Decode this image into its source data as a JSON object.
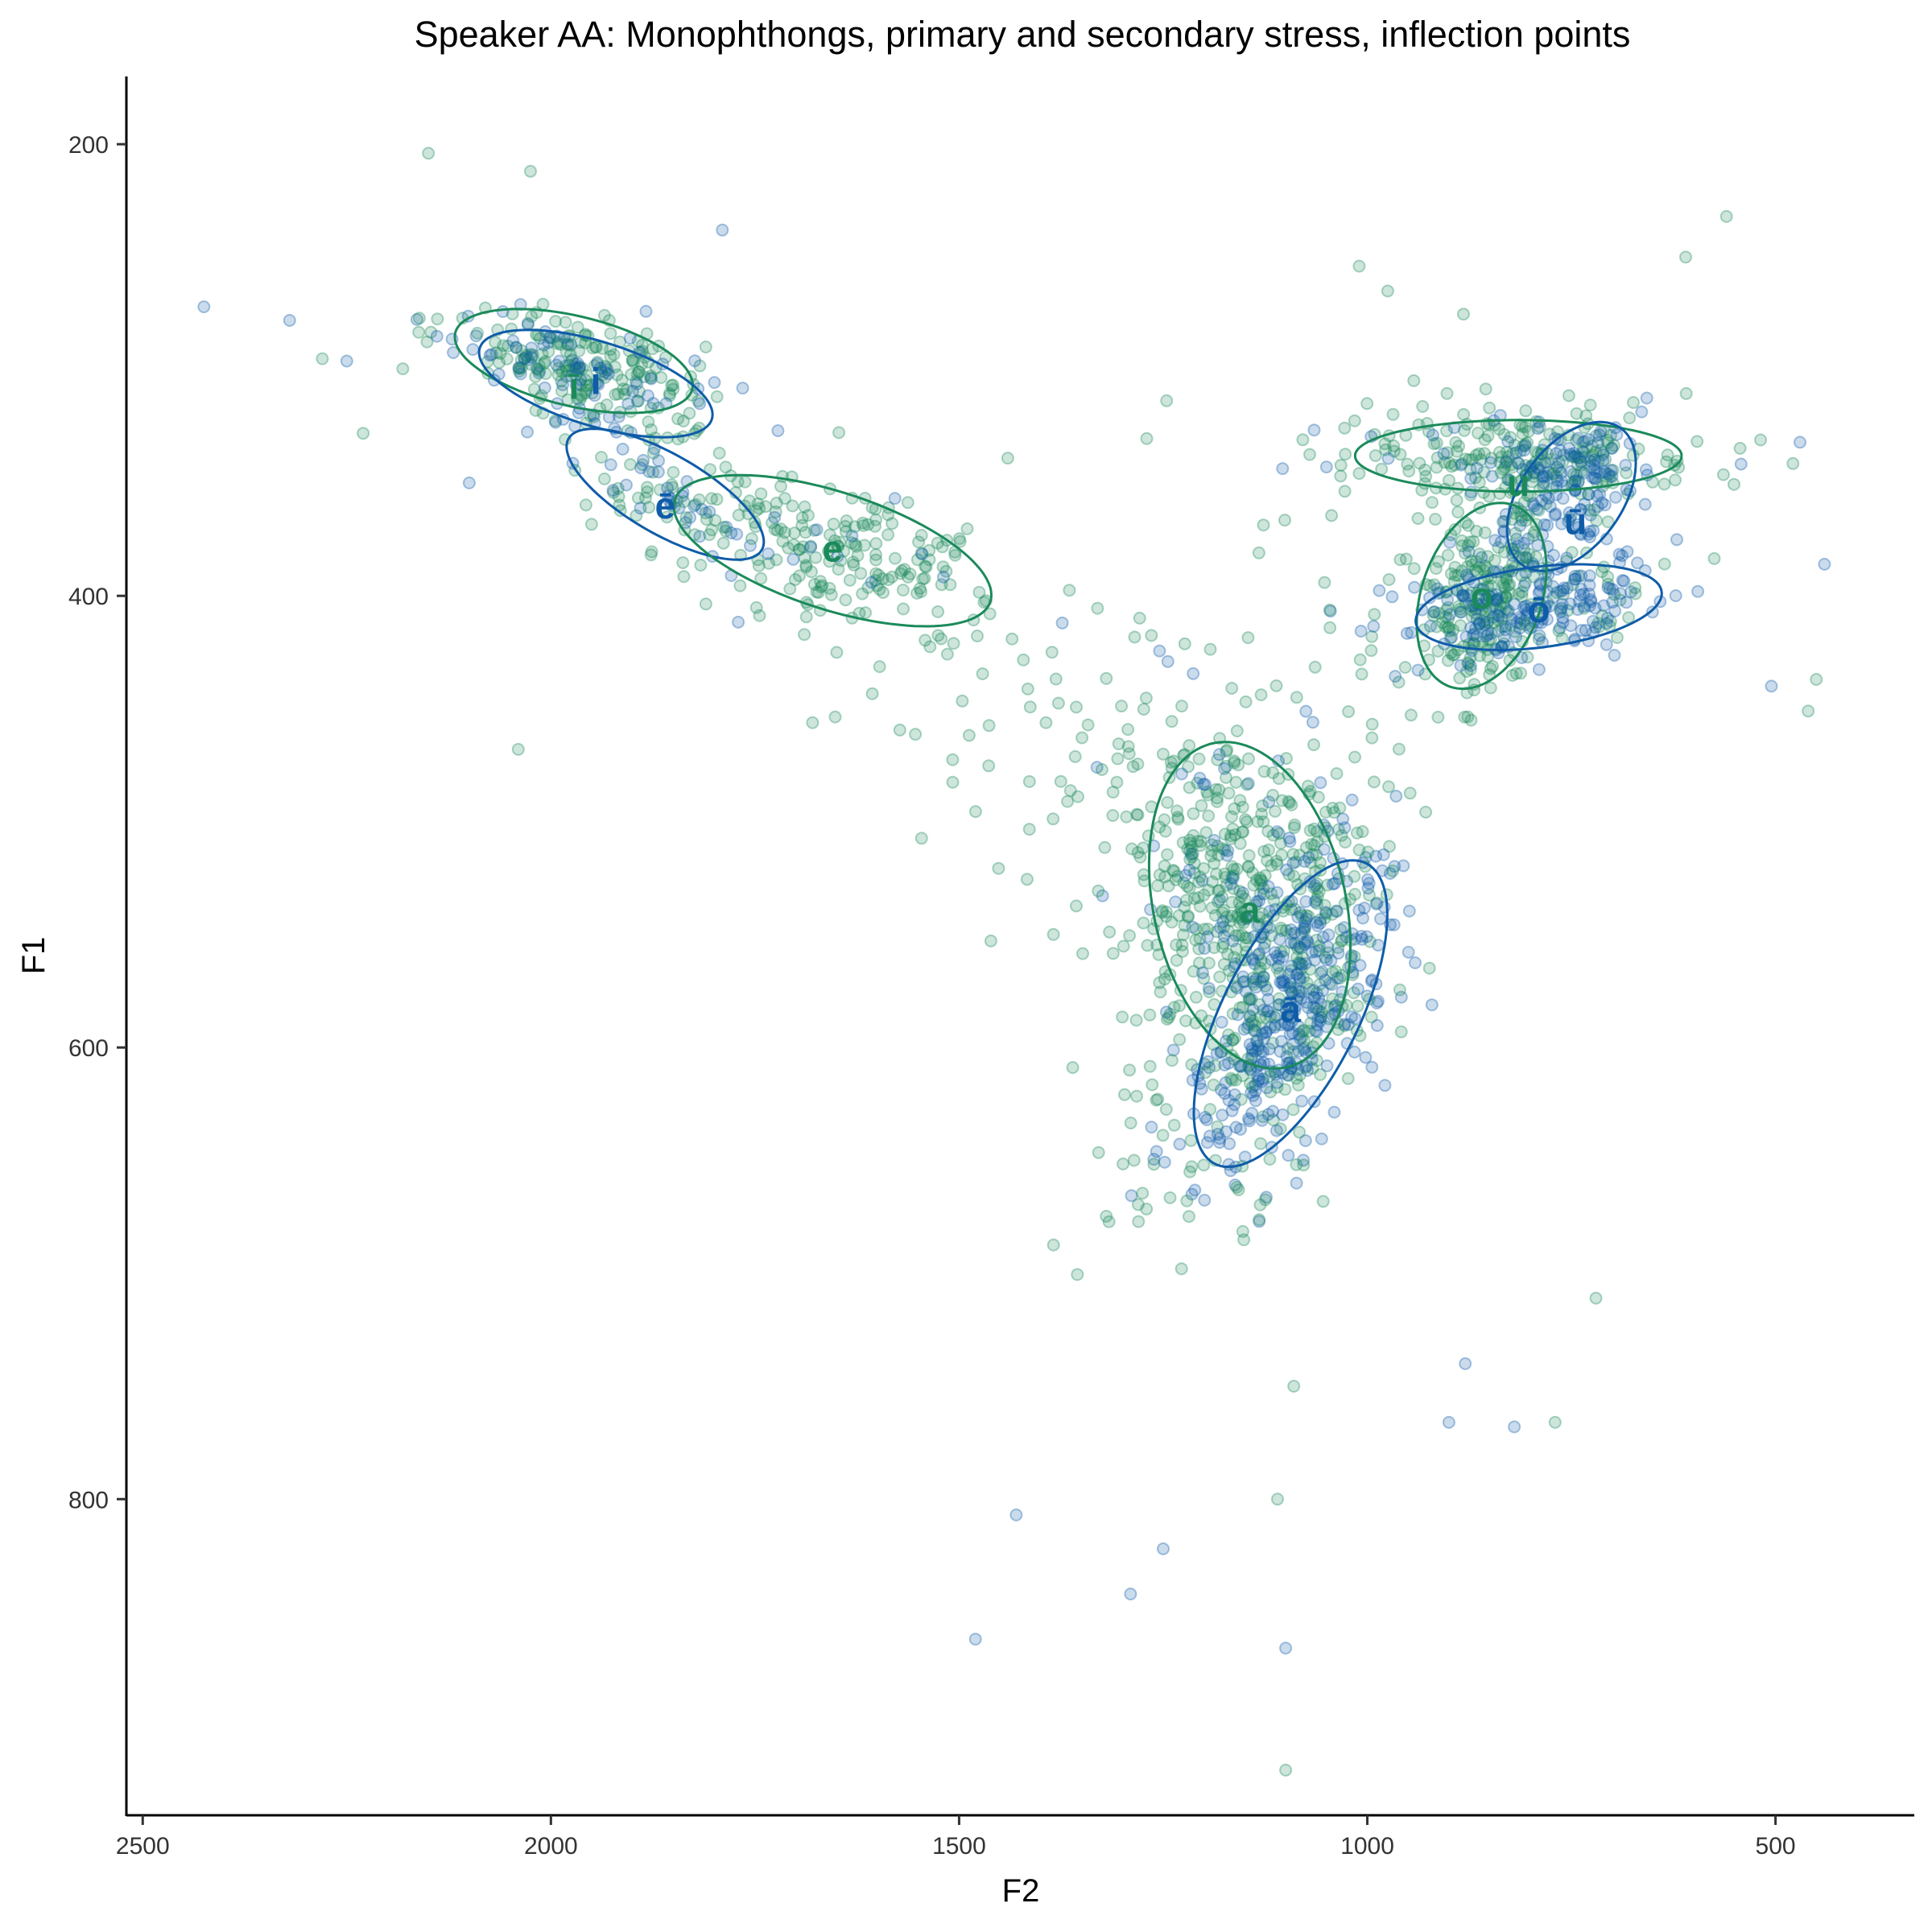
{
  "chart_data": {
    "type": "scatter",
    "title": "Speaker AA: Monophthongs, primary and secondary stress, inflection points",
    "xlabel": "F2",
    "ylabel": "F1",
    "x_reversed": true,
    "y_reversed": true,
    "xlim": [
      2520,
      330
    ],
    "ylim": [
      170,
      940
    ],
    "x_ticks": [
      2500,
      2000,
      1500,
      1000,
      500
    ],
    "y_ticks": [
      200,
      400,
      600,
      800
    ],
    "grid": false,
    "legend": "none",
    "colors": {
      "green": "#1b8a5a",
      "blue": "#0f5ca8"
    },
    "series": [
      {
        "color_key": "green",
        "values_from": "ellipses"
      },
      {
        "color_key": "blue",
        "values_from": "ellipses"
      }
    ],
    "ellipses": [
      {
        "label": "ī",
        "color_key": "green",
        "cx": 1972,
        "cy": 296,
        "sx": 150,
        "sy": 60,
        "angle_deg": 15,
        "label_x": 1972,
        "label_y": 307
      },
      {
        "label": "i",
        "color_key": "blue",
        "cx": 1945,
        "cy": 306,
        "sx": 150,
        "sy": 56,
        "angle_deg": 19,
        "label_x": 1945,
        "label_y": 305
      },
      {
        "label": "ē",
        "color_key": "blue",
        "cx": 1860,
        "cy": 355,
        "sx": 140,
        "sy": 52,
        "angle_deg": 33,
        "label_x": 1860,
        "label_y": 360
      },
      {
        "label": "e",
        "color_key": "green",
        "cx": 1655,
        "cy": 380,
        "sx": 205,
        "sy": 78,
        "angle_deg": 20,
        "label_x": 1655,
        "label_y": 379
      },
      {
        "label": "a",
        "color_key": "green",
        "cx": 1144,
        "cy": 537,
        "sx": 222,
        "sy": 118,
        "angle_deg": -101,
        "label_x": 1144,
        "label_y": 539
      },
      {
        "label": "ā",
        "color_key": "blue",
        "cx": 1094,
        "cy": 585,
        "sx": 222,
        "sy": 84,
        "angle_deg": -66,
        "label_x": 1094,
        "label_y": 583
      },
      {
        "label": "u",
        "color_key": "green",
        "cx": 815,
        "cy": 338,
        "sx": 200,
        "sy": 48,
        "angle_deg": 0,
        "label_x": 815,
        "label_y": 350
      },
      {
        "label": "ū",
        "color_key": "blue",
        "cx": 750,
        "cy": 356,
        "sx": 110,
        "sy": 64,
        "angle_deg": -59,
        "label_x": 745,
        "label_y": 367
      },
      {
        "label": "o",
        "color_key": "green",
        "cx": 860,
        "cy": 400,
        "sx": 128,
        "sy": 74,
        "angle_deg": -74,
        "label_x": 860,
        "label_y": 400
      },
      {
        "label": "ō",
        "color_key": "blue",
        "cx": 790,
        "cy": 405,
        "sx": 152,
        "sy": 54,
        "angle_deg": -8,
        "label_x": 790,
        "label_y": 406
      }
    ],
    "scatter_counts": {
      "ī": [
        120,
        35
      ],
      "i": [
        70,
        45
      ],
      "ē": [
        40,
        35
      ],
      "e": [
        170,
        15
      ],
      "a": [
        380,
        90
      ],
      "ā": [
        70,
        300
      ],
      "u": [
        180,
        40
      ],
      "ū": [
        40,
        110
      ],
      "o": [
        180,
        40
      ],
      "ō": [
        40,
        150
      ]
    },
    "outliers": [
      {
        "x": 2425,
        "y": 272,
        "color_key": "blue"
      },
      {
        "x": 2320,
        "y": 278,
        "color_key": "blue"
      },
      {
        "x": 2280,
        "y": 295,
        "color_key": "green"
      },
      {
        "x": 2250,
        "y": 296,
        "color_key": "blue"
      },
      {
        "x": 2230,
        "y": 328,
        "color_key": "green"
      },
      {
        "x": 2150,
        "y": 204,
        "color_key": "green"
      },
      {
        "x": 2100,
        "y": 350,
        "color_key": "blue"
      },
      {
        "x": 2040,
        "y": 468,
        "color_key": "green"
      },
      {
        "x": 2025,
        "y": 212,
        "color_key": "green"
      },
      {
        "x": 1790,
        "y": 238,
        "color_key": "blue"
      },
      {
        "x": 1480,
        "y": 862,
        "color_key": "blue"
      },
      {
        "x": 1430,
        "y": 807,
        "color_key": "blue"
      },
      {
        "x": 1290,
        "y": 842,
        "color_key": "blue"
      },
      {
        "x": 1250,
        "y": 822,
        "color_key": "blue"
      },
      {
        "x": 1100,
        "y": 866,
        "color_key": "blue"
      },
      {
        "x": 1100,
        "y": 920,
        "color_key": "green"
      },
      {
        "x": 1110,
        "y": 800,
        "color_key": "green"
      },
      {
        "x": 1090,
        "y": 750,
        "color_key": "green"
      },
      {
        "x": 1010,
        "y": 254,
        "color_key": "green"
      },
      {
        "x": 975,
        "y": 265,
        "color_key": "green"
      },
      {
        "x": 610,
        "y": 250,
        "color_key": "green"
      },
      {
        "x": 560,
        "y": 232,
        "color_key": "green"
      },
      {
        "x": 505,
        "y": 440,
        "color_key": "blue"
      },
      {
        "x": 470,
        "y": 332,
        "color_key": "blue"
      },
      {
        "x": 460,
        "y": 451,
        "color_key": "green"
      },
      {
        "x": 450,
        "y": 437,
        "color_key": "green"
      },
      {
        "x": 440,
        "y": 386,
        "color_key": "blue"
      },
      {
        "x": 720,
        "y": 711,
        "color_key": "green"
      },
      {
        "x": 770,
        "y": 766,
        "color_key": "green"
      },
      {
        "x": 820,
        "y": 768,
        "color_key": "blue"
      },
      {
        "x": 880,
        "y": 740,
        "color_key": "blue"
      },
      {
        "x": 900,
        "y": 766,
        "color_key": "blue"
      }
    ]
  }
}
